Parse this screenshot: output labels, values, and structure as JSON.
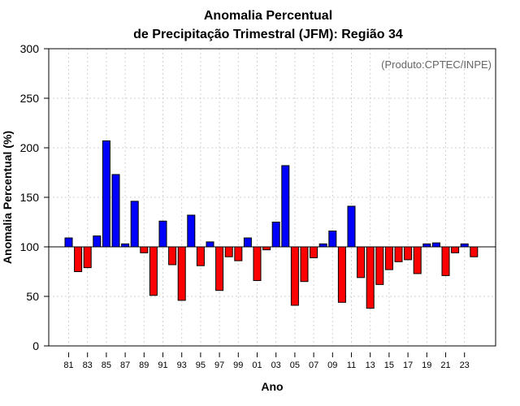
{
  "chart_data": {
    "type": "bar",
    "title_line1": "Anomalia Percentual",
    "title_line2": "de Precipitação Trimestral (JFM): Região 34",
    "credit": "(Produto:CPTEC/INPE)",
    "xlabel": "Ano",
    "ylabel": "Anomalia Percentual (%)",
    "ylim": [
      0,
      300
    ],
    "yticks": [
      0,
      50,
      100,
      150,
      200,
      250,
      300
    ],
    "baseline": 100,
    "grid": true,
    "colors": {
      "above": "#0000ff",
      "below": "#ff0000",
      "outline": "#000000",
      "grid": "#d0d0d0"
    },
    "categories": [
      "81",
      "82",
      "83",
      "84",
      "85",
      "86",
      "87",
      "88",
      "89",
      "90",
      "91",
      "92",
      "93",
      "94",
      "95",
      "96",
      "97",
      "98",
      "99",
      "00",
      "01",
      "02",
      "03",
      "04",
      "05",
      "06",
      "07",
      "08",
      "09",
      "10",
      "11",
      "12",
      "13",
      "14",
      "15",
      "16",
      "17",
      "18",
      "19",
      "20",
      "21",
      "22",
      "23",
      "24"
    ],
    "xtick_labels": [
      "81",
      "83",
      "85",
      "87",
      "89",
      "91",
      "93",
      "95",
      "97",
      "99",
      "01",
      "03",
      "05",
      "07",
      "09",
      "11",
      "13",
      "15",
      "17",
      "19",
      "21",
      "23"
    ],
    "values": [
      109,
      75,
      79,
      111,
      207,
      173,
      103,
      146,
      94,
      51,
      126,
      82,
      46,
      132,
      81,
      105,
      56,
      90,
      86,
      109,
      66,
      97,
      125,
      182,
      41,
      65,
      89,
      103,
      116,
      44,
      141,
      69,
      38,
      62,
      77,
      85,
      87,
      73,
      103,
      104,
      71,
      94,
      103,
      90
    ]
  }
}
